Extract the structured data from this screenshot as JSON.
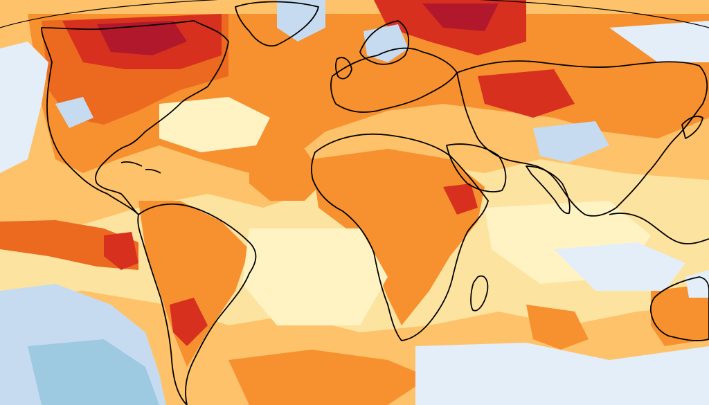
{
  "map": {
    "kind": "global temperature anomaly map",
    "palette": {
      "ocean_far": "#ffffff",
      "deep_blue": "#9ecae1",
      "light_blue": "#c6dbef",
      "pale_blue": "#e3eef8",
      "cream": "#fff3c4",
      "light_yellow": "#fde3a0",
      "yellow_orange": "#fdc26a",
      "orange": "#f7902f",
      "dark_orange": "#ec6a1f",
      "red": "#d7301f",
      "dark_red": "#b2182b",
      "coastline": "#000000"
    },
    "regions": [
      {
        "name": "arctic-canada-hotspot",
        "level": "dark_red"
      },
      {
        "name": "northern-america-warm",
        "level": "dark_orange"
      },
      {
        "name": "siberia-warm",
        "level": "red"
      },
      {
        "name": "atlantic-cool-patch",
        "level": "cream"
      },
      {
        "name": "east-pacific-warm-band",
        "level": "dark_orange"
      },
      {
        "name": "south-pacific-cool",
        "level": "light_blue"
      },
      {
        "name": "southern-ocean-cool",
        "level": "pale_blue"
      },
      {
        "name": "indian-ocean-cool",
        "level": "pale_blue"
      },
      {
        "name": "tibet-cool",
        "level": "light_blue"
      },
      {
        "name": "scandinavia-cool",
        "level": "light_blue"
      },
      {
        "name": "greenland-cool",
        "level": "light_blue"
      }
    ]
  }
}
